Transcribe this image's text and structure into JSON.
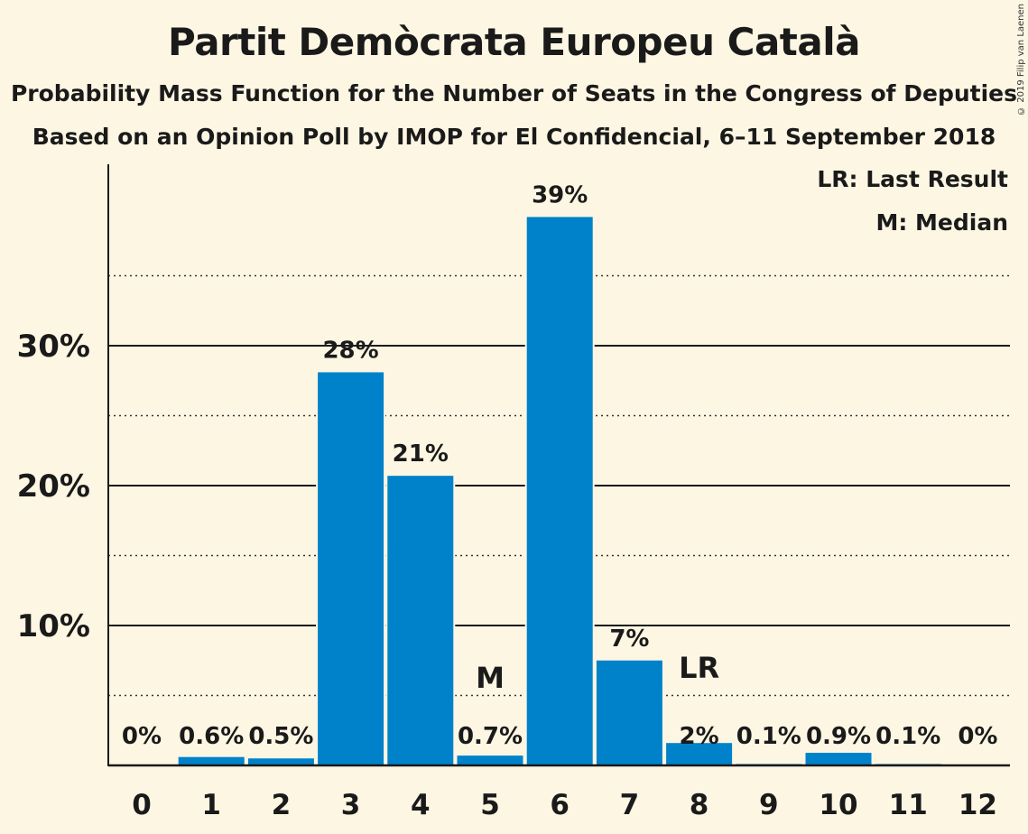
{
  "header": {
    "title": "Partit Demòcrata Europeu Català",
    "subtitle1": "Probability Mass Function for the Number of Seats in the Congress of Deputies",
    "subtitle2": "Based on an Opinion Poll by IMOP for El Confidencial, 6–11 September 2018",
    "copyright": "© 2019 Filip van Laenen"
  },
  "legend": {
    "last_result": "LR: Last Result",
    "median": "M: Median"
  },
  "chart_data": {
    "type": "bar",
    "categories": [
      "0",
      "1",
      "2",
      "3",
      "4",
      "5",
      "6",
      "7",
      "8",
      "9",
      "10",
      "11",
      "12"
    ],
    "values": [
      0,
      0.6,
      0.5,
      28.1,
      20.7,
      0.7,
      39.2,
      7.5,
      1.6,
      0.1,
      0.9,
      0.1,
      0
    ],
    "labels": [
      "0%",
      "0.6%",
      "0.5%",
      "28%",
      "21%",
      "0.7%",
      "39%",
      "7%",
      "2%",
      "0.1%",
      "0.9%",
      "0.1%",
      "0%"
    ],
    "ylim": [
      0,
      43
    ],
    "yticks": [
      10,
      20,
      30
    ],
    "ytick_labels": [
      "10%",
      "20%",
      "30%"
    ],
    "minor_gridlines": [
      5,
      15,
      25,
      35
    ],
    "median_category": "5",
    "median_marker": "M",
    "last_result_category": "8",
    "last_result_marker": "LR",
    "bar_color": "#0082ca",
    "background": "#fdf6e3"
  }
}
